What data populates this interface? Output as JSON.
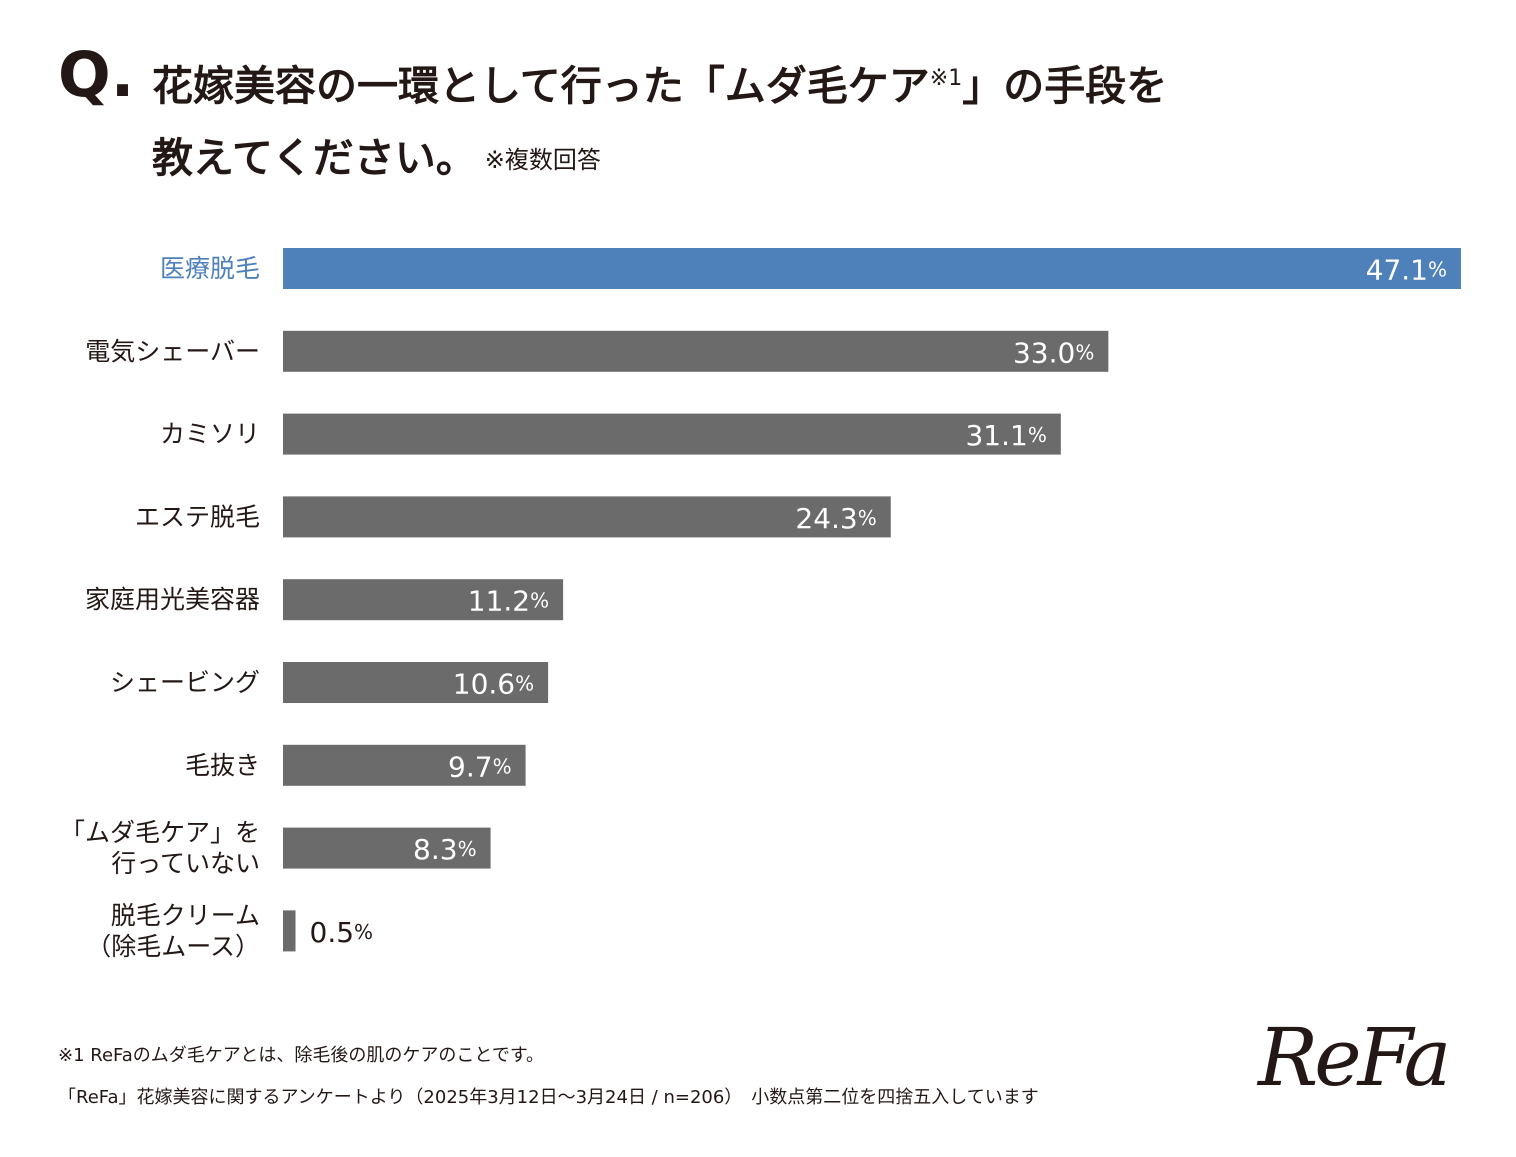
{
  "question": {
    "mark": "Q.",
    "line1": "花嫁美容の一環として行った「ムダ毛ケア",
    "line1_sup": "※1",
    "line1_end": "」の手段を",
    "line2": "教えてください。",
    "note": "※複数回答"
  },
  "chart_data": {
    "type": "bar",
    "orientation": "horizontal",
    "categories": [
      [
        "医療脱毛"
      ],
      [
        "電気シェーバー"
      ],
      [
        "カミソリ"
      ],
      [
        "エステ脱毛"
      ],
      [
        "家庭用光美容器"
      ],
      [
        "シェービング"
      ],
      [
        "毛抜き"
      ],
      [
        "「ムダ毛ケア」を",
        "行っていない"
      ],
      [
        "脱毛クリーム",
        "（除毛ムース）"
      ]
    ],
    "values": [
      47.1,
      33.0,
      31.1,
      24.3,
      11.2,
      10.6,
      9.7,
      8.3,
      0.5
    ],
    "value_labels": [
      "47.1",
      "33.0",
      "31.1",
      "24.3",
      "11.2",
      "10.6",
      "9.7",
      "8.3",
      "0.5"
    ],
    "unit": "%",
    "highlight_index": 0,
    "colors": {
      "highlight": "#4e80ba",
      "default": "#6b6b6b",
      "label_dark": "#231815",
      "value_on_bar": "#ffffff"
    },
    "xlim": [
      0,
      47.1
    ],
    "grid": false,
    "legend": "none"
  },
  "footnotes": {
    "line1": "※1 ReFaのムダ毛ケアとは、除毛後の肌のケアのことです。",
    "line2": "「ReFa」花嫁美容に関するアンケートより（2025年3月12日〜3月24日 / n=206）　小数点第二位を四捨五入しています"
  },
  "brand": {
    "logo_text": "ReFa"
  }
}
